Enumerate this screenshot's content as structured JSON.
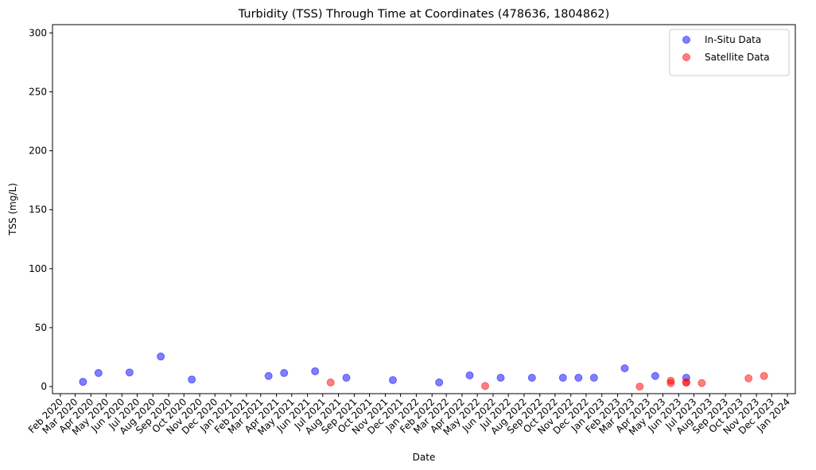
{
  "chart_data": {
    "type": "scatter",
    "title": "Turbidity (TSS) Through Time at Coordinates (478636, 1804862)",
    "x_label": "Date",
    "y_label": "TSS (mg/L)",
    "series": [
      {
        "name": "In-Situ Data",
        "color": "#0000ff",
        "x": [
          "2020-03",
          "2020-04",
          "2020-06",
          "2020-08",
          "2020-10",
          "2021-03",
          "2021-04",
          "2021-06",
          "2021-08",
          "2021-11",
          "2022-02",
          "2022-04",
          "2022-06",
          "2022-08",
          "2022-10",
          "2022-11",
          "2022-12",
          "2023-02",
          "2023-04",
          "2023-06"
        ],
        "values": [
          4,
          11.5,
          12,
          25.5,
          6,
          9,
          11.5,
          13,
          7.5,
          5.5,
          3.5,
          9.5,
          7.5,
          7.5,
          7.5,
          7.5,
          7.5,
          15.5,
          9,
          7.5
        ]
      },
      {
        "name": "Satellite Data",
        "color": "#ff0000",
        "x": [
          "2021-07",
          "2022-05",
          "2023-03",
          "2023-05",
          "2023-05",
          "2023-06",
          "2023-06",
          "2023-07",
          "2023-10",
          "2023-11"
        ],
        "values": [
          3.5,
          0.5,
          0,
          5,
          3,
          3.5,
          3.5,
          3,
          7,
          9
        ]
      }
    ],
    "xlim": [
      "2020-01",
      "2024-01"
    ],
    "xticks": [
      {
        "value": "2020-02",
        "label": "Feb 2020"
      },
      {
        "value": "2020-03",
        "label": "Mar 2020"
      },
      {
        "value": "2020-04",
        "label": "Apr 2020"
      },
      {
        "value": "2020-05",
        "label": "May 2020"
      },
      {
        "value": "2020-06",
        "label": "Jun 2020"
      },
      {
        "value": "2020-07",
        "label": "Jul 2020"
      },
      {
        "value": "2020-08",
        "label": "Aug 2020"
      },
      {
        "value": "2020-09",
        "label": "Sep 2020"
      },
      {
        "value": "2020-10",
        "label": "Oct 2020"
      },
      {
        "value": "2020-11",
        "label": "Nov 2020"
      },
      {
        "value": "2020-12",
        "label": "Dec 2020"
      },
      {
        "value": "2021-01",
        "label": "Jan 2021"
      },
      {
        "value": "2021-02",
        "label": "Feb 2021"
      },
      {
        "value": "2021-03",
        "label": "Mar 2021"
      },
      {
        "value": "2021-04",
        "label": "Apr 2021"
      },
      {
        "value": "2021-05",
        "label": "May 2021"
      },
      {
        "value": "2021-06",
        "label": "Jun 2021"
      },
      {
        "value": "2021-07",
        "label": "Jul 2021"
      },
      {
        "value": "2021-08",
        "label": "Aug 2021"
      },
      {
        "value": "2021-09",
        "label": "Sep 2021"
      },
      {
        "value": "2021-10",
        "label": "Oct 2021"
      },
      {
        "value": "2021-11",
        "label": "Nov 2021"
      },
      {
        "value": "2021-12",
        "label": "Dec 2021"
      },
      {
        "value": "2022-01",
        "label": "Jan 2022"
      },
      {
        "value": "2022-02",
        "label": "Feb 2022"
      },
      {
        "value": "2022-03",
        "label": "Mar 2022"
      },
      {
        "value": "2022-04",
        "label": "Apr 2022"
      },
      {
        "value": "2022-05",
        "label": "May 2022"
      },
      {
        "value": "2022-06",
        "label": "Jun 2022"
      },
      {
        "value": "2022-07",
        "label": "Jul 2022"
      },
      {
        "value": "2022-08",
        "label": "Aug 2022"
      },
      {
        "value": "2022-09",
        "label": "Sep 2022"
      },
      {
        "value": "2022-10",
        "label": "Oct 2022"
      },
      {
        "value": "2022-11",
        "label": "Nov 2022"
      },
      {
        "value": "2022-12",
        "label": "Dec 2022"
      },
      {
        "value": "2023-01",
        "label": "Jan 2023"
      },
      {
        "value": "2023-02",
        "label": "Feb 2023"
      },
      {
        "value": "2023-03",
        "label": "Mar 2023"
      },
      {
        "value": "2023-04",
        "label": "Apr 2023"
      },
      {
        "value": "2023-05",
        "label": "May 2023"
      },
      {
        "value": "2023-06",
        "label": "Jun 2023"
      },
      {
        "value": "2023-07",
        "label": "Jul 2023"
      },
      {
        "value": "2023-08",
        "label": "Aug 2023"
      },
      {
        "value": "2023-09",
        "label": "Sep 2023"
      },
      {
        "value": "2023-10",
        "label": "Oct 2023"
      },
      {
        "value": "2023-11",
        "label": "Nov 2023"
      },
      {
        "value": "2023-12",
        "label": "Dec 2023"
      },
      {
        "value": "2024-01",
        "label": "Jan 2024"
      }
    ],
    "ylim": [
      -6,
      307
    ],
    "yticks": [
      0,
      50,
      100,
      150,
      200,
      250,
      300
    ],
    "alpha": 0.5,
    "legend": "upper right",
    "grid": false
  }
}
